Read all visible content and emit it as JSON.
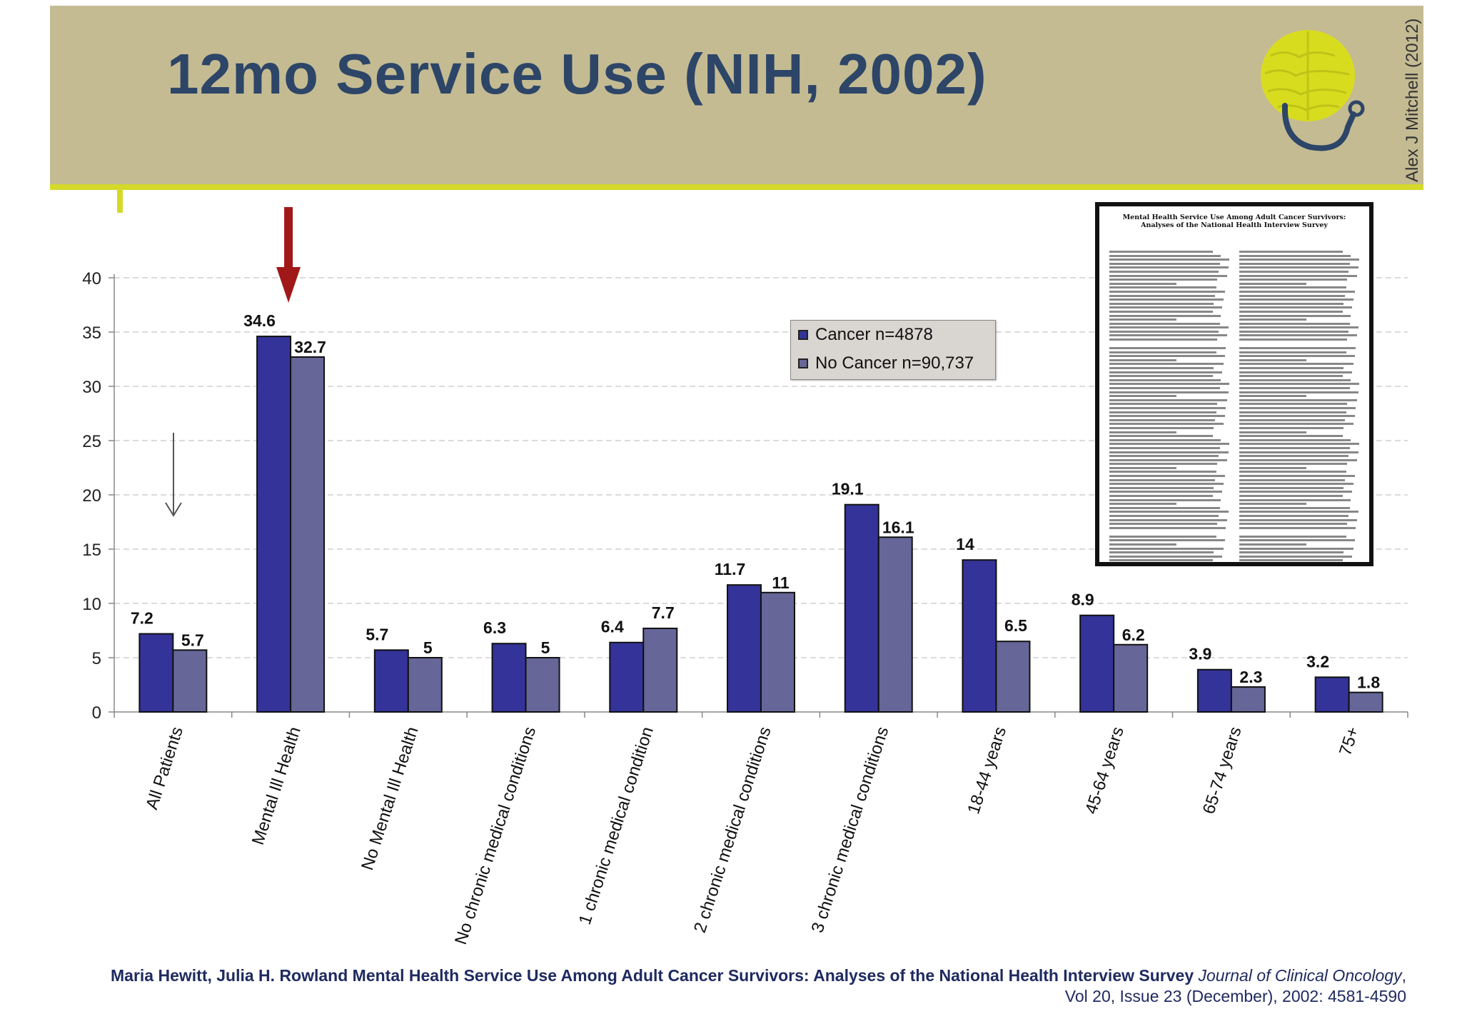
{
  "slide": {
    "title": "12mo Service Use (NIH, 2002)",
    "author_credit": "Alex J Mitchell (2012)"
  },
  "colors": {
    "header_bg": "#c4bb93",
    "header_rule": "#d4d92a",
    "title": "#2d4567",
    "cancer_bar": "#333399",
    "no_cancer_bar": "#666699",
    "highlight_arrow": "#a01818"
  },
  "icons": {
    "logo": "brain-stethoscope-logo",
    "highlight_arrow": "red-arrow-down-icon",
    "pointer_arrow": "gray-arrow-down-icon"
  },
  "chart_data": {
    "type": "bar",
    "title": "",
    "xlabel": "",
    "ylabel": "",
    "ylim": [
      0,
      40
    ],
    "yticks": [
      0,
      5,
      10,
      15,
      20,
      25,
      30,
      35,
      40
    ],
    "grid": true,
    "legend_position": "top-right",
    "categories": [
      "All Patients",
      "Mental Ill Health",
      "No Mental Ill Health",
      "No chronic medical conditions",
      "1 chronic medical condition",
      "2 chronic medical conditions",
      "3 chronic medical conditions",
      "18-44 years",
      "45-64 years",
      "65-74 years",
      "75+"
    ],
    "series": [
      {
        "name": "Cancer n=4878",
        "values": [
          7.2,
          34.6,
          5.7,
          6.3,
          6.4,
          11.7,
          19.1,
          14,
          8.9,
          3.9,
          3.2
        ],
        "labels": [
          "7.2",
          "34.6",
          "5.7",
          "6.3",
          "6.4",
          "11.7",
          "19.1",
          "14",
          "8.9",
          "3.9",
          "3.2"
        ]
      },
      {
        "name": "No Cancer n=90,737",
        "values": [
          5.7,
          32.7,
          5,
          5,
          7.7,
          11,
          16.1,
          6.5,
          6.2,
          2.3,
          1.8
        ],
        "labels": [
          "5.7",
          "32.7",
          "5",
          "5",
          "7.7",
          "11",
          "16.1",
          "6.5",
          "6.2",
          "2.3",
          "1.8"
        ]
      }
    ],
    "annotations": [
      {
        "type": "arrow",
        "color": "red",
        "points_to": "Mental Ill Health"
      },
      {
        "type": "arrow",
        "color": "gray",
        "points_to": "All Patients"
      }
    ]
  },
  "paper": {
    "title": "Mental Health Service Use Among Adult Cancer Survivors: Analyses of the National Health Interview Survey"
  },
  "citation": {
    "authors_and_title": "Maria Hewitt, Julia H. Rowland Mental Health Service Use Among Adult Cancer Survivors: Analyses of the National Health Interview Survey",
    "journal": "Journal of Clinical Oncology",
    "details": ", Vol 20, Issue 23 (December), 2002: 4581-4590"
  }
}
